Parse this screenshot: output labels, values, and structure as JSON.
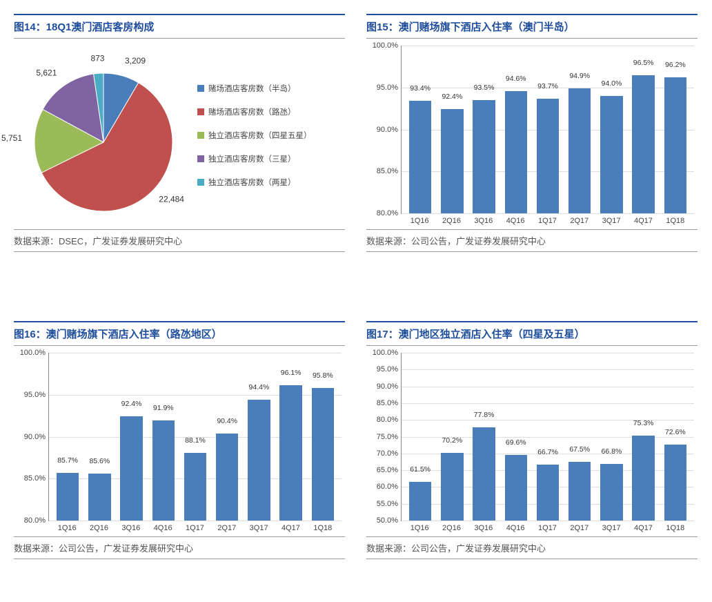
{
  "colors": {
    "bar": "#4a7ebb",
    "grid": "#dddddd",
    "axis": "#888888",
    "title": "#1f4e9c"
  },
  "panels": {
    "p14": {
      "title": "图14：18Q1澳门酒店客房构成",
      "source": "数据来源：DSEC，广发证券发展研究中心",
      "type": "pie",
      "slices": [
        {
          "label": "赌场酒店客房数（半岛）",
          "value": 3209,
          "color": "#4a7ebb",
          "dlabel": "3,209"
        },
        {
          "label": "赌场酒店客房数（路氹）",
          "value": 22484,
          "color": "#c0504d",
          "dlabel": "22,484"
        },
        {
          "label": "独立酒店客房数（四星五星）",
          "value": 5751,
          "color": "#9bbb59",
          "dlabel": "5,751"
        },
        {
          "label": "独立酒店客房数（三星）",
          "value": 5621,
          "color": "#8064a2",
          "dlabel": "5,621"
        },
        {
          "label": "独立酒店客房数（两星）",
          "value": 873,
          "color": "#4bacc6",
          "dlabel": "873"
        }
      ]
    },
    "p15": {
      "title": "图15：澳门赌场旗下酒店入住率（澳门半岛）",
      "source": "数据来源：公司公告，广发证券发展研究中心",
      "type": "bar",
      "ylim": [
        80,
        100
      ],
      "ytick_step": 5,
      "ysuffix": ".0%",
      "categories": [
        "1Q16",
        "2Q16",
        "3Q16",
        "4Q16",
        "1Q17",
        "2Q17",
        "3Q17",
        "4Q17",
        "1Q18"
      ],
      "values": [
        93.4,
        92.4,
        93.5,
        94.6,
        93.7,
        94.9,
        94.0,
        96.5,
        96.2
      ]
    },
    "p16": {
      "title": "图16：澳门赌场旗下酒店入住率（路氹地区）",
      "source": "数据来源：公司公告，广发证券发展研究中心",
      "type": "bar",
      "ylim": [
        80,
        100
      ],
      "ytick_step": 5,
      "ysuffix": ".0%",
      "categories": [
        "1Q16",
        "2Q16",
        "3Q16",
        "4Q16",
        "1Q17",
        "2Q17",
        "3Q17",
        "4Q17",
        "1Q18"
      ],
      "values": [
        85.7,
        85.6,
        92.4,
        91.9,
        88.1,
        90.4,
        94.4,
        96.1,
        95.8
      ]
    },
    "p17": {
      "title": "图17：澳门地区独立酒店入住率（四星及五星）",
      "source": "数据来源：公司公告，广发证券发展研究中心",
      "type": "bar",
      "ylim": [
        50,
        100
      ],
      "ytick_step": 5,
      "ysuffix": ".0%",
      "categories": [
        "1Q16",
        "2Q16",
        "3Q16",
        "4Q16",
        "1Q17",
        "2Q17",
        "3Q17",
        "4Q17",
        "1Q18"
      ],
      "values": [
        61.5,
        70.2,
        77.8,
        69.6,
        66.7,
        67.5,
        66.8,
        75.3,
        72.6
      ]
    }
  }
}
